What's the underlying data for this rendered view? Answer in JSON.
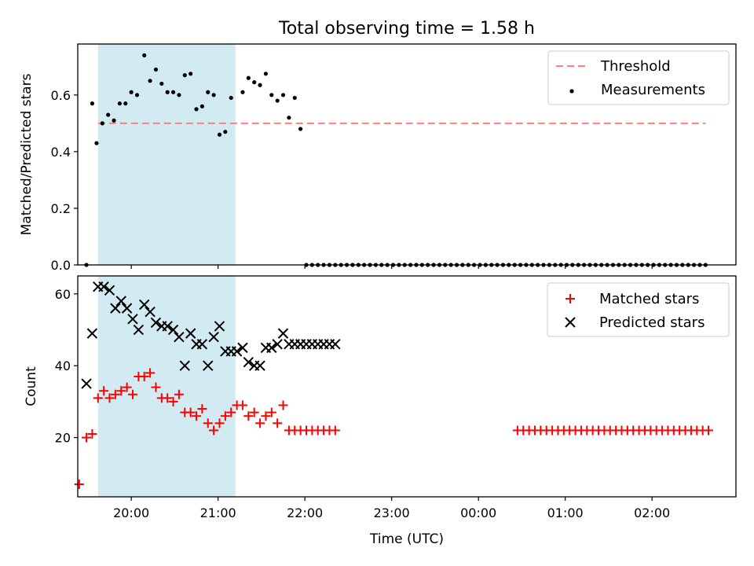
{
  "colors": {
    "threshold": "#ff7f7f",
    "measurement": "#000000",
    "matched": "#ff0000",
    "predicted": "#000000",
    "highlight": "#add8e6"
  },
  "chart_data": [
    {
      "type": "scatter",
      "title": "Total observing time = 1.58 h",
      "xlabel": "",
      "ylabel": "Matched/Predicted stars",
      "xlim": [
        "19:23",
        "02:58"
      ],
      "ylim": [
        0,
        0.78
      ],
      "yticks": [
        0.0,
        0.2,
        0.4,
        0.6
      ],
      "ytick_labels": [
        "0.0",
        "0.2",
        "0.4",
        "0.6"
      ],
      "highlight_span": [
        "19:37",
        "21:12"
      ],
      "legend": {
        "location": "upper right",
        "entries": [
          "Threshold",
          "Measurements"
        ]
      },
      "threshold": {
        "name": "Threshold",
        "y": 0.5,
        "x": [
          "19:37",
          "02:37"
        ],
        "style": "dashed"
      },
      "series": [
        {
          "name": "Measurements",
          "marker": "dot",
          "x": [
            "19:29",
            "19:33",
            "19:36",
            "19:40",
            "19:44",
            "19:48",
            "19:52",
            "19:56",
            "20:00",
            "20:04",
            "20:09",
            "20:13",
            "20:17",
            "20:21",
            "20:25",
            "20:29",
            "20:33",
            "20:37",
            "20:41",
            "20:45",
            "20:49",
            "20:53",
            "20:57",
            "21:01",
            "21:05",
            "21:09",
            "21:17",
            "21:21",
            "21:25",
            "21:29",
            "21:33",
            "21:37",
            "21:41",
            "21:45",
            "21:49",
            "21:53",
            "21:57",
            "22:01",
            "22:05",
            "22:09",
            "22:13",
            "22:17",
            "22:21",
            "22:25",
            "22:29",
            "22:33",
            "22:37",
            "22:41",
            "22:45",
            "22:49",
            "22:53",
            "22:57",
            "23:01",
            "23:05",
            "23:09",
            "23:13",
            "23:17",
            "23:21",
            "23:25",
            "23:29",
            "23:33",
            "23:37",
            "23:41",
            "23:45",
            "23:49",
            "23:53",
            "23:57",
            "00:01",
            "00:05",
            "00:09",
            "00:13",
            "00:17",
            "00:21",
            "00:25",
            "00:29",
            "00:33",
            "00:37",
            "00:41",
            "00:45",
            "00:49",
            "00:53",
            "00:57",
            "01:01",
            "01:05",
            "01:09",
            "01:13",
            "01:17",
            "01:21",
            "01:25",
            "01:29",
            "01:33",
            "01:37",
            "01:41",
            "01:45",
            "01:49",
            "01:53",
            "01:57",
            "02:01",
            "02:05",
            "02:09",
            "02:13",
            "02:17",
            "02:21",
            "02:25",
            "02:29",
            "02:33",
            "02:37"
          ],
          "y": [
            0.0,
            0.57,
            0.43,
            0.5,
            0.53,
            0.51,
            0.57,
            0.57,
            0.61,
            0.6,
            0.74,
            0.65,
            0.69,
            0.64,
            0.61,
            0.61,
            0.6,
            0.67,
            0.675,
            0.55,
            0.56,
            0.61,
            0.6,
            0.46,
            0.47,
            0.59,
            0.61,
            0.66,
            0.645,
            0.635,
            0.675,
            0.6,
            0.58,
            0.6,
            0.52,
            0.59,
            0.48,
            0.0,
            0.0,
            0.0,
            0.0,
            0.0,
            0.0,
            0.0,
            0.0,
            0.0,
            0.0,
            0.0,
            0.0,
            0.0,
            0.0,
            0.0,
            0.0,
            0.0,
            0.0,
            0.0,
            0.0,
            0.0,
            0.0,
            0.0,
            0.0,
            0.0,
            0.0,
            0.0,
            0.0,
            0.0,
            0.0,
            0.0,
            0.0,
            0.0,
            0.0,
            0.0,
            0.0,
            0.0,
            0.0,
            0.0,
            0.0,
            0.0,
            0.0,
            0.0,
            0.0,
            0.0,
            0.0,
            0.0,
            0.0,
            0.0,
            0.0,
            0.0,
            0.0,
            0.0,
            0.0,
            0.0,
            0.0,
            0.0,
            0.0,
            0.0,
            0.0,
            0.0,
            0.0,
            0.0,
            0.0,
            0.0,
            0.0,
            0.0,
            0.0,
            0.0,
            0.0
          ]
        }
      ]
    },
    {
      "type": "scatter",
      "title": "",
      "xlabel": "Time (UTC)",
      "ylabel": "Count",
      "xlim": [
        "19:23",
        "02:58"
      ],
      "ylim": [
        3.5,
        65
      ],
      "yticks": [
        20,
        40,
        60
      ],
      "ytick_labels": [
        "20",
        "40",
        "60"
      ],
      "xticks": [
        "20:00",
        "21:00",
        "22:00",
        "23:00",
        "00:00",
        "01:00",
        "02:00"
      ],
      "highlight_span": [
        "19:37",
        "21:12"
      ],
      "legend": {
        "location": "upper right",
        "entries": [
          "Matched stars",
          "Predicted stars"
        ]
      },
      "series": [
        {
          "name": "Matched stars",
          "marker": "plus",
          "x": [
            "19:24",
            "19:29",
            "19:33",
            "19:37",
            "19:41",
            "19:45",
            "19:49",
            "19:53",
            "19:57",
            "20:01",
            "20:05",
            "20:09",
            "20:13",
            "20:17",
            "20:21",
            "20:25",
            "20:29",
            "20:33",
            "20:37",
            "20:41",
            "20:45",
            "20:49",
            "20:53",
            "20:57",
            "21:01",
            "21:05",
            "21:09",
            "21:13",
            "21:17",
            "21:21",
            "21:25",
            "21:29",
            "21:33",
            "21:37",
            "21:41",
            "21:45",
            "21:49",
            "21:53",
            "21:57",
            "22:01",
            "22:05",
            "22:09",
            "22:13",
            "22:17",
            "22:21",
            "00:27",
            "00:31",
            "00:35",
            "00:39",
            "00:43",
            "00:47",
            "00:51",
            "00:55",
            "00:59",
            "01:03",
            "01:07",
            "01:11",
            "01:15",
            "01:19",
            "01:23",
            "01:27",
            "01:31",
            "01:35",
            "01:39",
            "01:43",
            "01:47",
            "01:51",
            "01:55",
            "01:59",
            "02:03",
            "02:07",
            "02:11",
            "02:15",
            "02:19",
            "02:23",
            "02:27",
            "02:31",
            "02:35",
            "02:39"
          ],
          "y": [
            7,
            20,
            21,
            31,
            33,
            31,
            32,
            33,
            34,
            32,
            37,
            37,
            38,
            34,
            31,
            31,
            30,
            32,
            27,
            27,
            26,
            28,
            24,
            22,
            24,
            26,
            27,
            29,
            29,
            26,
            27,
            24,
            26,
            27,
            24,
            29,
            22,
            22,
            22,
            22,
            22,
            22,
            22,
            22,
            22,
            22,
            22,
            22,
            22,
            22,
            22,
            22,
            22,
            22,
            22,
            22,
            22,
            22,
            22,
            22,
            22,
            22,
            22,
            22,
            22,
            22,
            22,
            22,
            22,
            22,
            22,
            22,
            22,
            22,
            22,
            22,
            22,
            22,
            22
          ],
          "y_note": ""
        },
        {
          "name": "Predicted stars",
          "marker": "x",
          "x": [
            "19:29",
            "19:33",
            "19:37",
            "19:41",
            "19:45",
            "19:49",
            "19:53",
            "19:57",
            "20:01",
            "20:05",
            "20:09",
            "20:13",
            "20:17",
            "20:21",
            "20:25",
            "20:29",
            "20:33",
            "20:37",
            "20:41",
            "20:45",
            "20:49",
            "20:53",
            "20:57",
            "21:01",
            "21:05",
            "21:09",
            "21:13",
            "21:17",
            "21:21",
            "21:25",
            "21:29",
            "21:33",
            "21:37",
            "21:41",
            "21:45",
            "21:49",
            "21:53",
            "21:57",
            "22:01",
            "22:05",
            "22:09",
            "22:13",
            "22:17",
            "22:21"
          ],
          "y": [
            35,
            49,
            62,
            62,
            61,
            56,
            58,
            56,
            53,
            50,
            57,
            55,
            52,
            51,
            51,
            50,
            48,
            40,
            49,
            46,
            46,
            40,
            48,
            51,
            44,
            44,
            44,
            45,
            41,
            40,
            40,
            45,
            45,
            46,
            49,
            46,
            46,
            46,
            46,
            46,
            46,
            46,
            46,
            46
          ]
        }
      ]
    }
  ]
}
